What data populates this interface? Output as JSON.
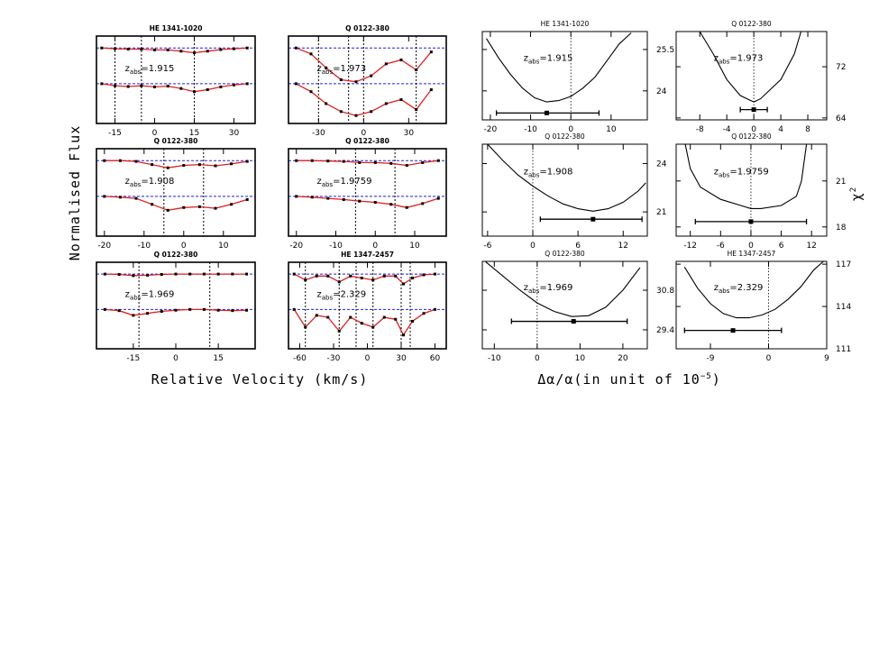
{
  "figure": {
    "ylabel_left": "Normalised Flux",
    "xlabel_left": "Relative Velocity (km/s)",
    "xlabel_right": [
      "Δα/α(in unit of 10",
      "−5",
      ")"
    ],
    "ylabel_right": [
      "χ",
      "2"
    ]
  },
  "chart_data": [
    {
      "type": "spectrum",
      "title": "HE 1341-1020",
      "annotation": [
        "z",
        "abs",
        "=1.915"
      ],
      "xlim": [
        -22,
        38
      ],
      "xticks": [
        -15,
        0,
        15,
        30
      ],
      "ylim": [
        0,
        2.2
      ],
      "continuum": [
        1.9,
        1.0
      ],
      "components": [
        -15,
        -5,
        15
      ],
      "fit_color": "#e02020",
      "point_color": "#000000",
      "continuum_color": "#2020e0",
      "x": [
        -20,
        -15,
        -10,
        -5,
        0,
        5,
        10,
        15,
        20,
        25,
        30,
        35
      ],
      "series": [
        {
          "values": [
            1.9,
            1.88,
            1.87,
            1.87,
            1.85,
            1.85,
            1.82,
            1.78,
            1.82,
            1.86,
            1.88,
            1.9
          ]
        },
        {
          "values": [
            1.0,
            0.95,
            0.93,
            0.95,
            0.92,
            0.94,
            0.88,
            0.8,
            0.85,
            0.92,
            0.97,
            1.0
          ]
        }
      ]
    },
    {
      "type": "spectrum",
      "title": "Q 0122-380",
      "annotation": [
        "z",
        "abs",
        "=1.973"
      ],
      "xlim": [
        -50,
        55
      ],
      "xticks": [
        -30,
        0,
        30
      ],
      "ylim": [
        0,
        2.2
      ],
      "continuum": [
        1.9,
        1.0
      ],
      "components": [
        -30,
        -10,
        0,
        35
      ],
      "fit_color": "#e02020",
      "point_color": "#000000",
      "continuum_color": "#2020e0",
      "x": [
        -45,
        -35,
        -25,
        -15,
        -5,
        5,
        15,
        25,
        35,
        45
      ],
      "series": [
        {
          "values": [
            1.9,
            1.75,
            1.4,
            1.1,
            1.05,
            1.2,
            1.5,
            1.6,
            1.35,
            1.8
          ]
        },
        {
          "values": [
            1.0,
            0.8,
            0.5,
            0.3,
            0.2,
            0.3,
            0.5,
            0.6,
            0.35,
            0.85
          ]
        }
      ]
    },
    {
      "type": "spectrum",
      "title": "Q 0122-380",
      "annotation": [
        "z",
        "abs",
        "=1.908"
      ],
      "xlim": [
        -22,
        18
      ],
      "xticks": [
        -20,
        -10,
        0,
        10
      ],
      "ylim": [
        0,
        2.2
      ],
      "continuum": [
        1.9,
        1.0
      ],
      "components": [
        -5,
        5
      ],
      "fit_color": "#e02020",
      "point_color": "#000000",
      "continuum_color": "#2020e0",
      "x": [
        -20,
        -16,
        -12,
        -8,
        -4,
        0,
        4,
        8,
        12,
        16
      ],
      "series": [
        {
          "values": [
            1.9,
            1.9,
            1.88,
            1.8,
            1.72,
            1.78,
            1.8,
            1.77,
            1.82,
            1.88
          ]
        },
        {
          "values": [
            1.0,
            0.98,
            0.95,
            0.8,
            0.65,
            0.72,
            0.74,
            0.7,
            0.8,
            0.92
          ]
        }
      ]
    },
    {
      "type": "spectrum",
      "title": "Q 0122-380",
      "annotation": [
        "z",
        "abs",
        "=1.9759"
      ],
      "xlim": [
        -22,
        18
      ],
      "xticks": [
        -20,
        -10,
        0,
        10
      ],
      "ylim": [
        0,
        2.2
      ],
      "continuum": [
        1.9,
        1.0
      ],
      "components": [
        -5,
        5
      ],
      "fit_color": "#e02020",
      "point_color": "#000000",
      "continuum_color": "#2020e0",
      "x": [
        -20,
        -16,
        -12,
        -8,
        -4,
        0,
        4,
        8,
        12,
        16
      ],
      "series": [
        {
          "values": [
            1.9,
            1.9,
            1.89,
            1.88,
            1.85,
            1.85,
            1.83,
            1.78,
            1.85,
            1.9
          ]
        },
        {
          "values": [
            1.0,
            0.98,
            0.95,
            0.92,
            0.88,
            0.85,
            0.8,
            0.72,
            0.82,
            0.95
          ]
        }
      ]
    },
    {
      "type": "spectrum",
      "title": "Q 0122-380",
      "annotation": [
        "z",
        "abs",
        "=1.969"
      ],
      "xlim": [
        -28,
        28
      ],
      "xticks": [
        -15,
        0,
        15
      ],
      "ylim": [
        0,
        2.2
      ],
      "continuum": [
        1.9,
        1.0
      ],
      "components": [
        -13,
        12
      ],
      "fit_color": "#e02020",
      "point_color": "#000000",
      "continuum_color": "#2020e0",
      "x": [
        -25,
        -20,
        -15,
        -10,
        -5,
        0,
        5,
        10,
        15,
        20,
        25
      ],
      "series": [
        {
          "values": [
            1.9,
            1.89,
            1.86,
            1.87,
            1.89,
            1.9,
            1.9,
            1.9,
            1.9,
            1.9,
            1.9
          ]
        },
        {
          "values": [
            1.0,
            0.97,
            0.85,
            0.9,
            0.95,
            0.98,
            1.0,
            1.0,
            0.98,
            0.97,
            0.98
          ]
        }
      ]
    },
    {
      "type": "spectrum",
      "title": "HE 1347-2457",
      "annotation": [
        "z",
        "abs",
        "=2.329"
      ],
      "xlim": [
        -70,
        70
      ],
      "xticks": [
        -60,
        -30,
        0,
        30,
        60
      ],
      "ylim": [
        0,
        2.2
      ],
      "continuum": [
        1.9,
        1.0
      ],
      "components": [
        -55,
        -25,
        -10,
        5,
        30,
        38
      ],
      "fit_color": "#e02020",
      "point_color": "#000000",
      "continuum_color": "#2020e0",
      "x": [
        -65,
        -55,
        -45,
        -35,
        -25,
        -15,
        -5,
        5,
        15,
        25,
        32,
        40,
        50,
        60
      ],
      "series": [
        {
          "values": [
            1.9,
            1.75,
            1.85,
            1.85,
            1.7,
            1.85,
            1.8,
            1.75,
            1.85,
            1.85,
            1.65,
            1.8,
            1.88,
            1.9
          ]
        },
        {
          "values": [
            1.0,
            0.55,
            0.85,
            0.8,
            0.45,
            0.8,
            0.65,
            0.55,
            0.8,
            0.75,
            0.35,
            0.7,
            0.9,
            1.0
          ]
        }
      ]
    },
    {
      "type": "chi2",
      "title": "HE 1341-1020",
      "annotation": [
        "z",
        "abs",
        "=1.915"
      ],
      "xlim": [
        -22,
        19
      ],
      "xticks": [
        -20,
        -10,
        0,
        10
      ],
      "ylim": [
        22.95,
        26.15
      ],
      "yticks": [
        24,
        25.5
      ],
      "ref_line": 0,
      "color": "#000000",
      "x": [
        -21,
        -18,
        -15,
        -12,
        -9,
        -6,
        -3,
        0,
        3,
        6,
        9,
        12,
        15
      ],
      "values": [
        25.9,
        25.2,
        24.6,
        24.1,
        23.75,
        23.6,
        23.65,
        23.8,
        24.1,
        24.5,
        25.1,
        25.7,
        26.1
      ],
      "fit": {
        "x": -6,
        "y": 23.2,
        "err_minus": 12.5,
        "err_plus": 13
      }
    },
    {
      "type": "chi2",
      "title": "Q 0122-380",
      "annotation": [
        "z",
        "abs",
        "=1.973"
      ],
      "xlim": [
        -11.5,
        10.8
      ],
      "xticks": [
        -8,
        -4,
        0,
        4,
        8
      ],
      "ylim": [
        63.7,
        77.5
      ],
      "yticks": [
        64,
        72
      ],
      "ref_line": 0,
      "color": "#000000",
      "x": [
        -8,
        -6,
        -4,
        -2,
        -1,
        0,
        1,
        2,
        4,
        6,
        7
      ],
      "values": [
        77.5,
        74,
        70,
        67.5,
        67,
        66.5,
        67,
        68,
        70,
        74,
        77.5
      ],
      "fit": {
        "x": 0,
        "y": 65.3,
        "err_minus": 2,
        "err_plus": 2
      }
    },
    {
      "type": "chi2",
      "title": "Q 0122-380",
      "annotation": [
        "z",
        "abs",
        "=1.908"
      ],
      "xlim": [
        -6.7,
        15.2
      ],
      "xticks": [
        -6,
        0,
        6,
        12
      ],
      "ylim": [
        19.5,
        25.2
      ],
      "yticks": [
        21,
        24
      ],
      "ref_line": 0,
      "color": "#000000",
      "x": [
        -6,
        -4,
        -2,
        0,
        2,
        4,
        6,
        8,
        10,
        12,
        14,
        15
      ],
      "values": [
        25.2,
        24.2,
        23.3,
        22.6,
        22,
        21.5,
        21.2,
        21.05,
        21.2,
        21.6,
        22.3,
        22.8
      ],
      "fit": {
        "x": 8,
        "y": 20.55,
        "err_minus": 7,
        "err_plus": 6.5
      }
    },
    {
      "type": "chi2",
      "title": "Q 0122-380",
      "annotation": [
        "z",
        "abs",
        "=1.9759"
      ],
      "xlim": [
        -14.8,
        15
      ],
      "xticks": [
        -12,
        -6,
        0,
        6,
        12
      ],
      "ylim": [
        17.4,
        23.4
      ],
      "yticks": [
        18,
        21
      ],
      "ref_line": 0,
      "color": "#000000",
      "x": [
        -13,
        -12,
        -10,
        -6,
        -2,
        0,
        2,
        6,
        9,
        10,
        11
      ],
      "values": [
        23.4,
        21.8,
        20.6,
        19.8,
        19.4,
        19.2,
        19.2,
        19.4,
        20,
        21,
        23.4
      ],
      "fit": {
        "x": 0,
        "y": 18.35,
        "err_minus": 11,
        "err_plus": 11
      }
    },
    {
      "type": "chi2",
      "title": "Q 0122-380",
      "annotation": [
        "z",
        "abs",
        "=1.969"
      ],
      "xlim": [
        -12.8,
        25.7
      ],
      "xticks": [
        -10,
        0,
        10,
        20
      ],
      "ylim": [
        28.73,
        31.82
      ],
      "yticks": [
        29.4,
        30.8
      ],
      "ref_line": 0,
      "color": "#000000",
      "x": [
        -12,
        -8,
        -4,
        0,
        4,
        8,
        12,
        16,
        20,
        24
      ],
      "values": [
        31.8,
        31.3,
        30.8,
        30.35,
        30.05,
        29.87,
        29.9,
        30.2,
        30.8,
        31.6
      ],
      "fit": {
        "x": 8.5,
        "y": 29.7,
        "err_minus": 14.5,
        "err_plus": 12.5
      }
    },
    {
      "type": "chi2",
      "title": "HE 1347-2457",
      "annotation": [
        "z",
        "abs",
        "=2.329"
      ],
      "xlim": [
        -14.3,
        9
      ],
      "xticks": [
        -9,
        0,
        9
      ],
      "ylim": [
        111,
        117.2
      ],
      "yticks": [
        111,
        114,
        117
      ],
      "ref_line": 0,
      "color": "#000000",
      "x": [
        -13,
        -11,
        -9,
        -7,
        -5,
        -3,
        -1,
        1,
        3,
        5,
        7,
        8.5
      ],
      "values": [
        116.8,
        115.3,
        114.2,
        113.5,
        113.2,
        113.2,
        113.4,
        113.8,
        114.5,
        115.4,
        116.6,
        117.2
      ],
      "fit": {
        "x": -5.5,
        "y": 112.3,
        "err_minus": 7.5,
        "err_plus": 7.5
      }
    }
  ]
}
